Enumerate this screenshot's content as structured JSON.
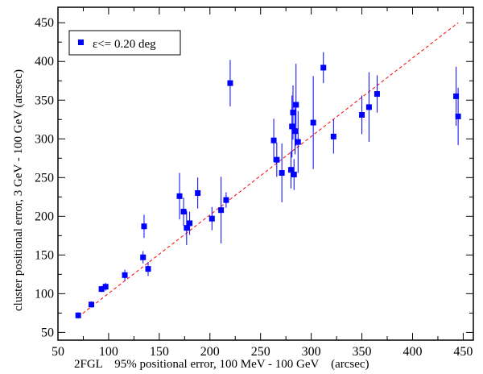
{
  "chart_data": {
    "type": "scatter",
    "title": "",
    "xlabel": "2FGL    95% positional error, 100 MeV - 100 GeV    (arcsec)",
    "ylabel": "cluster positional error, 3 GeV - 100 GeV  (arcsec)",
    "xlim": [
      50,
      460
    ],
    "ylim": [
      40,
      470
    ],
    "xticks": [
      50,
      100,
      150,
      200,
      250,
      300,
      350,
      400,
      450
    ],
    "yticks": [
      50,
      100,
      150,
      200,
      250,
      300,
      350,
      400,
      450
    ],
    "grid": false,
    "legend": {
      "position": "top-left",
      "entries": [
        "ε<= 0.20 deg"
      ]
    },
    "series": [
      {
        "name": "ε<= 0.20 deg",
        "marker": "square",
        "color": "#0000ff",
        "points": [
          {
            "x": 70,
            "y": 72,
            "err": 4
          },
          {
            "x": 83,
            "y": 86,
            "err": 4
          },
          {
            "x": 93,
            "y": 106,
            "err": 4
          },
          {
            "x": 97,
            "y": 109,
            "err": 5
          },
          {
            "x": 116,
            "y": 124,
            "err": 7
          },
          {
            "x": 134,
            "y": 147,
            "err": 8
          },
          {
            "x": 135,
            "y": 187,
            "err": 15
          },
          {
            "x": 139,
            "y": 132,
            "err": 9
          },
          {
            "x": 170,
            "y": 226,
            "err": 30
          },
          {
            "x": 174,
            "y": 206,
            "err": 18
          },
          {
            "x": 177,
            "y": 185,
            "err": 22
          },
          {
            "x": 180,
            "y": 191,
            "err": 15
          },
          {
            "x": 188,
            "y": 230,
            "err": 20
          },
          {
            "x": 202,
            "y": 197,
            "err": 15
          },
          {
            "x": 211,
            "y": 208,
            "err": 43
          },
          {
            "x": 216,
            "y": 221,
            "err": 10
          },
          {
            "x": 220,
            "y": 372,
            "err": 30
          },
          {
            "x": 263,
            "y": 298,
            "err": 28
          },
          {
            "x": 266,
            "y": 273,
            "err": 22
          },
          {
            "x": 271,
            "y": 256,
            "err": 38
          },
          {
            "x": 280,
            "y": 260,
            "err": 24
          },
          {
            "x": 281,
            "y": 316,
            "err": 40
          },
          {
            "x": 282,
            "y": 334,
            "err": 35
          },
          {
            "x": 283,
            "y": 254,
            "err": 20
          },
          {
            "x": 284,
            "y": 310,
            "err": 30
          },
          {
            "x": 285,
            "y": 344,
            "err": 53
          },
          {
            "x": 287,
            "y": 296,
            "err": 40
          },
          {
            "x": 302,
            "y": 321,
            "err": 60
          },
          {
            "x": 312,
            "y": 392,
            "err": 20
          },
          {
            "x": 322,
            "y": 303,
            "err": 22
          },
          {
            "x": 350,
            "y": 331,
            "err": 25
          },
          {
            "x": 357,
            "y": 341,
            "err": 45
          },
          {
            "x": 365,
            "y": 358,
            "err": 24
          },
          {
            "x": 443,
            "y": 355,
            "err": 38
          },
          {
            "x": 445,
            "y": 329,
            "err": 37
          }
        ]
      }
    ],
    "reference_line": {
      "style": "dashed",
      "color": "#ff0000",
      "from": [
        70,
        70
      ],
      "to": [
        445,
        450
      ]
    }
  }
}
